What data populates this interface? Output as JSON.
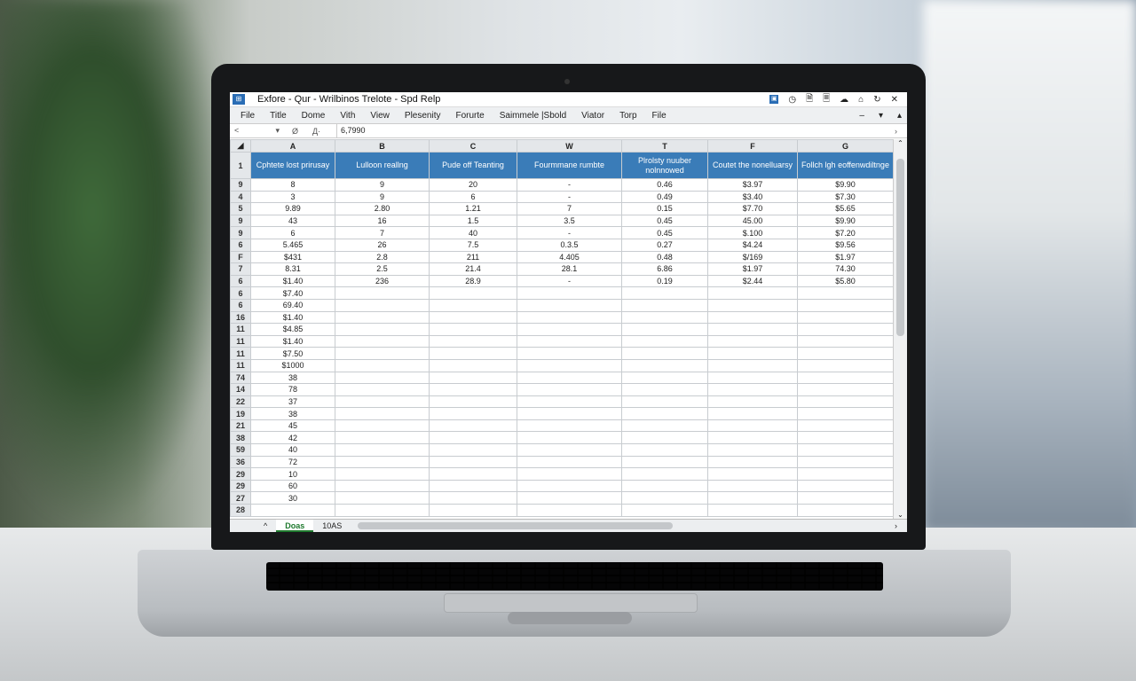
{
  "window": {
    "title": "Exfore - Qur - Wrilbinos  Trelote - Spd   Relp",
    "app_icon": "spreadsheet-icon",
    "controls": [
      "pin-icon",
      "clock-icon",
      "save-icon",
      "lock-icon",
      "cloud-icon",
      "bell-icon",
      "refresh-icon",
      "close-icon"
    ],
    "control_glyphs": [
      "▣",
      "◷",
      "🗎",
      "🗏",
      "☁",
      "⌂",
      "↻",
      "✕"
    ]
  },
  "menu": {
    "items": [
      "File",
      "Title",
      "Dome",
      "Vith",
      "View",
      "Plesenity",
      "Forurte",
      "Saimmele |Sbold",
      "Viator",
      "Torp",
      "File"
    ],
    "right": [
      "–",
      "▾",
      "▴"
    ]
  },
  "formula_bar": {
    "name_box": "<",
    "fx_icons": [
      "Ø",
      "Д·"
    ],
    "value": "6,7990"
  },
  "columns": [
    "A",
    "B",
    "C",
    "W",
    "T",
    "F",
    "G"
  ],
  "header_row": {
    "row": "1",
    "cells": [
      "Cphtete lost prirusay",
      "Lulloon reallng",
      "Pude off Teanting",
      "Fourmmane rumbte",
      "Plrolsty nuuber nolnnowed",
      "Coutet the nonelluarsy",
      "Follch lgh eoffenwdiltnge"
    ]
  },
  "rows": [
    {
      "n": "9",
      "c": [
        "8",
        "9",
        "20",
        "-",
        "0.46",
        "$3.97",
        "$9.90"
      ]
    },
    {
      "n": "4",
      "c": [
        "3",
        "9",
        "6",
        "-",
        "0.49",
        "$3.40",
        "$7.30"
      ]
    },
    {
      "n": "5",
      "c": [
        "9.89",
        "2.80",
        "1.21",
        "7",
        "0.15",
        "$7.70",
        "$5.65"
      ]
    },
    {
      "n": "9",
      "c": [
        "43",
        "16",
        "1.5",
        "3.5",
        "0.45",
        "45.00",
        "$9.90"
      ]
    },
    {
      "n": "9",
      "c": [
        "6",
        "7",
        "40",
        "-",
        "0.45",
        "$.100",
        "$7.20"
      ]
    },
    {
      "n": "6",
      "c": [
        "5.465",
        "26",
        "7.5",
        "0.3.5",
        "0.27",
        "$4.24",
        "$9.56"
      ]
    },
    {
      "n": "F",
      "c": [
        "$431",
        "2.8",
        "211",
        "4.405",
        "0.48",
        "$/169",
        "$1.97"
      ]
    },
    {
      "n": "7",
      "c": [
        "8.31",
        "2.5",
        "21.4",
        "28.1",
        "6.86",
        "$1.97",
        "74.30"
      ]
    },
    {
      "n": "6",
      "c": [
        "$1.40",
        "236",
        "28.9",
        "-",
        "0.19",
        "$2.44",
        "$5.80"
      ]
    },
    {
      "n": "6",
      "c": [
        "$7.40",
        "",
        "",
        "",
        "",
        "",
        ""
      ]
    },
    {
      "n": "6",
      "c": [
        "69.40",
        "",
        "",
        "",
        "",
        "",
        ""
      ]
    },
    {
      "n": "16",
      "c": [
        "$1.40",
        "",
        "",
        "",
        "",
        "",
        ""
      ]
    },
    {
      "n": "11",
      "c": [
        "$4.85",
        "",
        "",
        "",
        "",
        "",
        ""
      ]
    },
    {
      "n": "11",
      "c": [
        "$1.40",
        "",
        "",
        "",
        "",
        "",
        ""
      ]
    },
    {
      "n": "11",
      "c": [
        "$7.50",
        "",
        "",
        "",
        "",
        "",
        ""
      ]
    },
    {
      "n": "11",
      "c": [
        "$1000",
        "",
        "",
        "",
        "",
        "",
        ""
      ]
    },
    {
      "n": "74",
      "c": [
        "38",
        "",
        "",
        "",
        "",
        "",
        ""
      ]
    },
    {
      "n": "14",
      "c": [
        "78",
        "",
        "",
        "",
        "",
        "",
        ""
      ]
    },
    {
      "n": "22",
      "c": [
        "37",
        "",
        "",
        "",
        "",
        "",
        ""
      ]
    },
    {
      "n": "19",
      "c": [
        "38",
        "",
        "",
        "",
        "",
        "",
        ""
      ]
    },
    {
      "n": "21",
      "c": [
        "45",
        "",
        "",
        "",
        "",
        "",
        ""
      ]
    },
    {
      "n": "38",
      "c": [
        "42",
        "",
        "",
        "",
        "",
        "",
        ""
      ]
    },
    {
      "n": "59",
      "c": [
        "40",
        "",
        "",
        "",
        "",
        "",
        ""
      ]
    },
    {
      "n": "36",
      "c": [
        "72",
        "",
        "",
        "",
        "",
        "",
        ""
      ]
    },
    {
      "n": "29",
      "c": [
        "10",
        "",
        "",
        "",
        "",
        "",
        ""
      ]
    },
    {
      "n": "29",
      "c": [
        "60",
        "",
        "",
        "",
        "",
        "",
        ""
      ]
    },
    {
      "n": "27",
      "c": [
        "30",
        "",
        "",
        "",
        "",
        "",
        ""
      ]
    },
    {
      "n": "28",
      "c": [
        "",
        "",
        "",
        "",
        "",
        "",
        ""
      ]
    }
  ],
  "sheet_tabs": {
    "nav": "^",
    "tabs": [
      "Doas",
      "10AS"
    ],
    "active": "Doas"
  },
  "colors": {
    "header_fill": "#3a7cb8",
    "active_tab": "#1f7a2e",
    "app_blue": "#2a6db5"
  }
}
